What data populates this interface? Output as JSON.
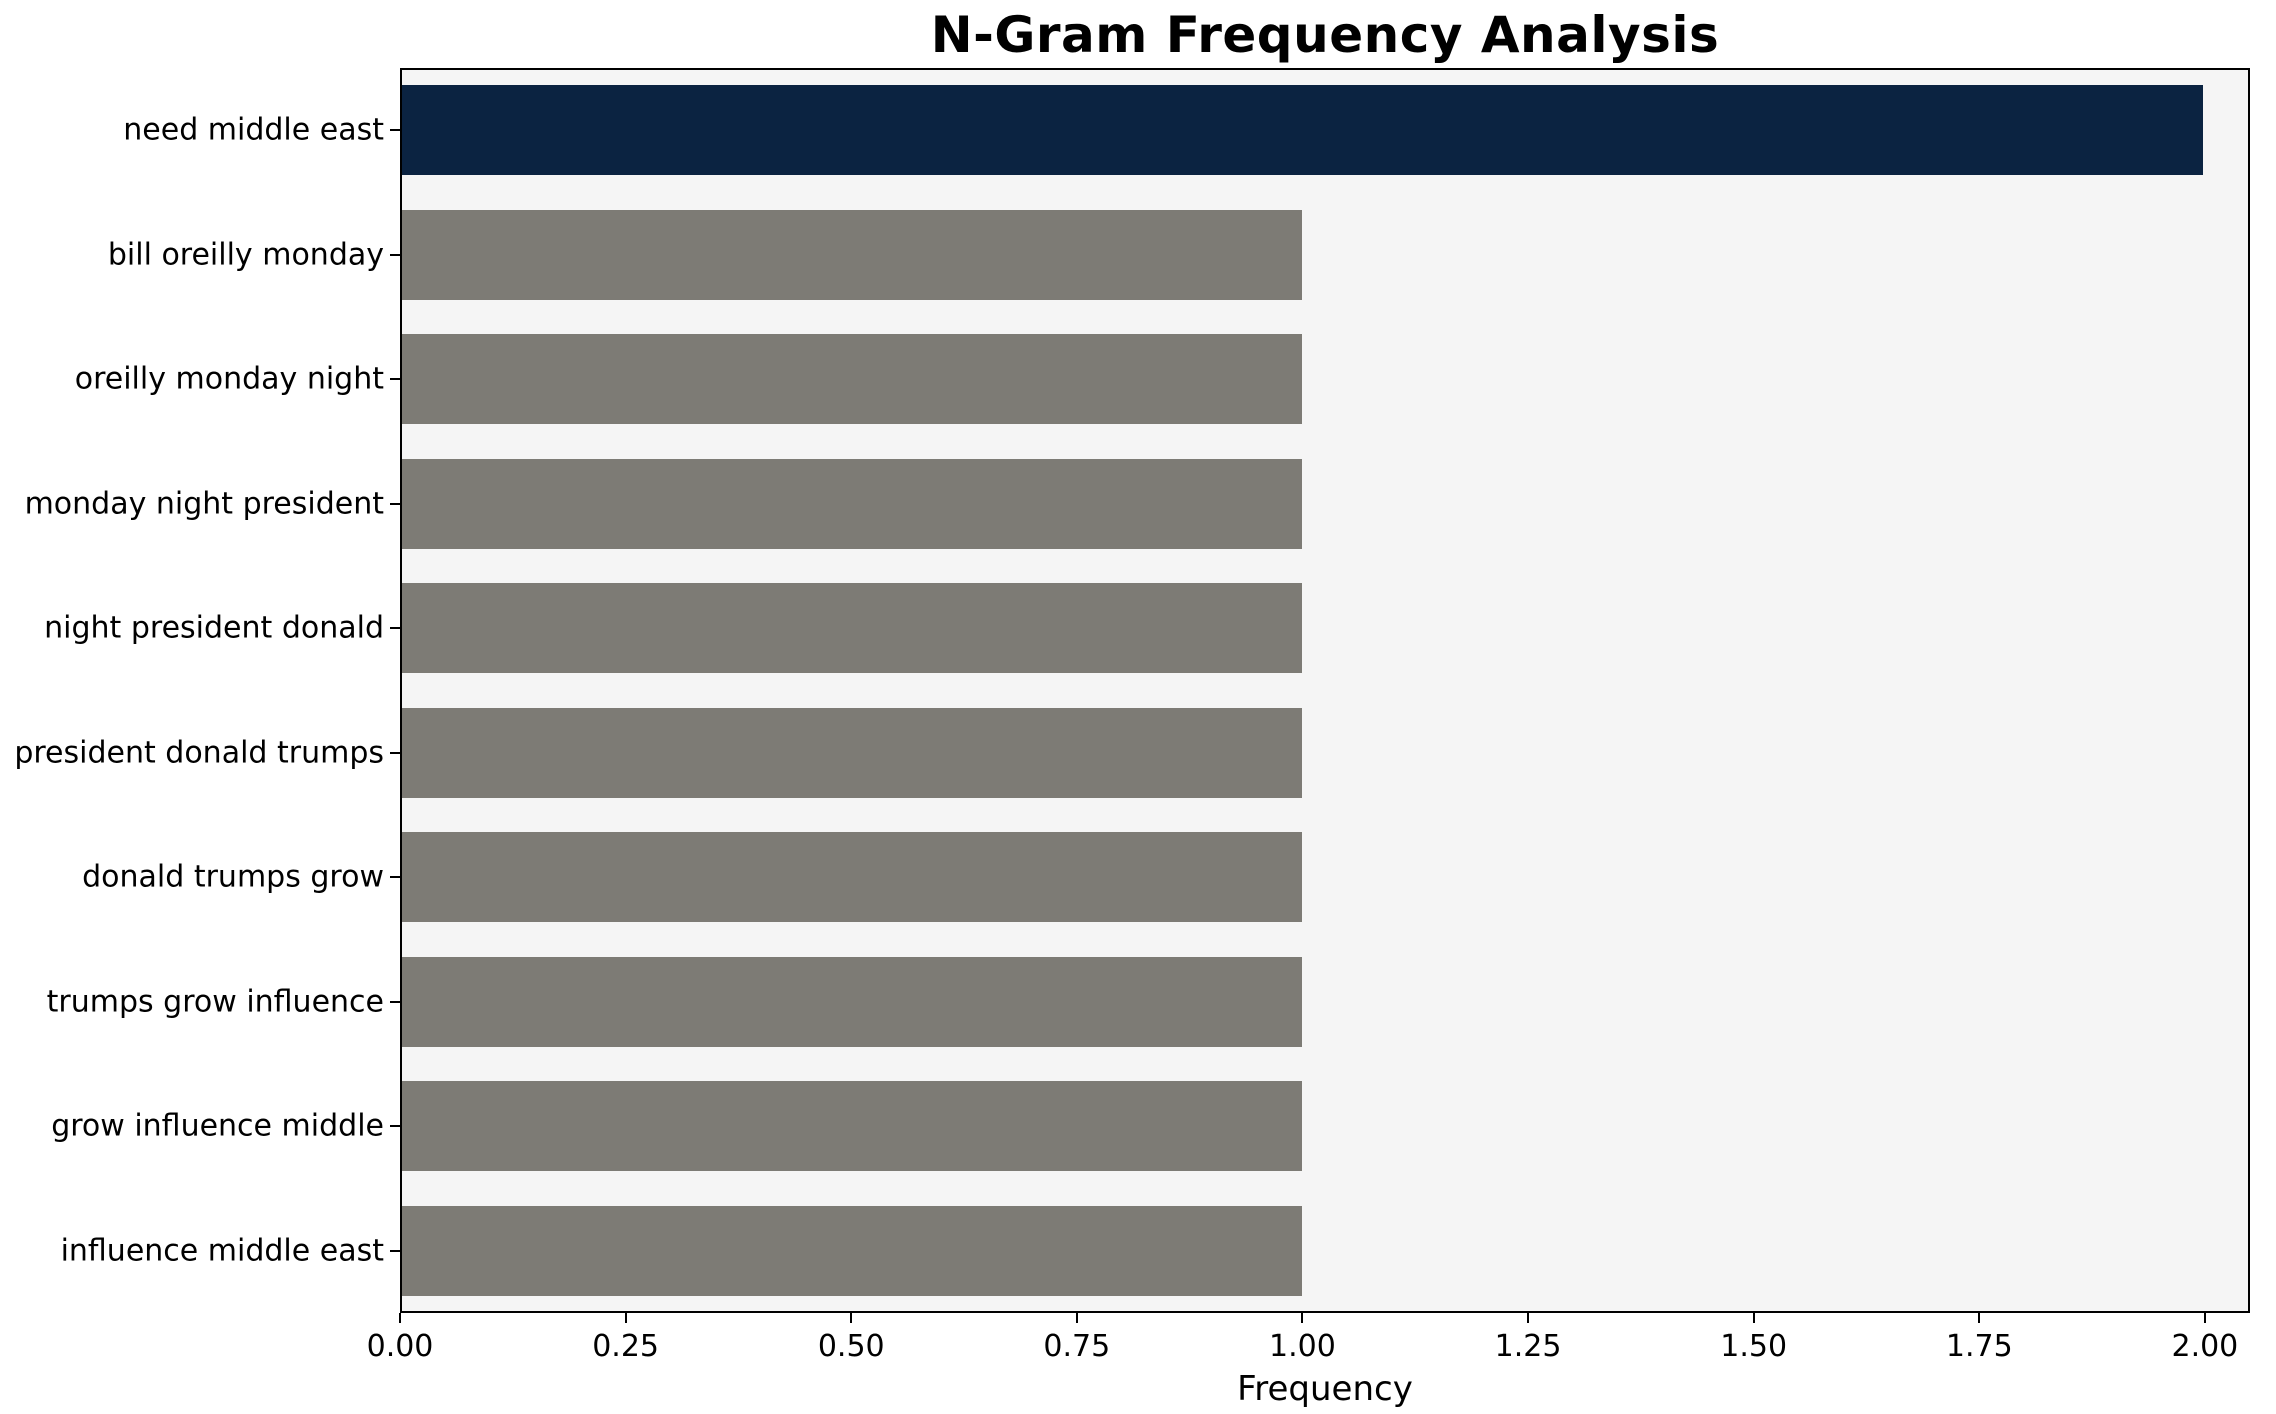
{
  "chart_data": {
    "type": "bar",
    "orientation": "horizontal",
    "title": "N-Gram Frequency Analysis",
    "xlabel": "Frequency",
    "ylabel": "",
    "categories": [
      "need middle east",
      "bill oreilly monday",
      "oreilly monday night",
      "monday night president",
      "night president donald",
      "president donald trumps",
      "donald trumps grow",
      "trumps grow influence",
      "grow influence middle",
      "influence middle east"
    ],
    "values": [
      2,
      1,
      1,
      1,
      1,
      1,
      1,
      1,
      1,
      1
    ],
    "highlight_index": 0,
    "xlim": [
      0,
      2.05
    ],
    "xtick_values": [
      0.0,
      0.25,
      0.5,
      0.75,
      1.0,
      1.25,
      1.5,
      1.75,
      2.0
    ],
    "xtick_labels": [
      "0.00",
      "0.25",
      "0.50",
      "0.75",
      "1.00",
      "1.25",
      "1.50",
      "1.75",
      "2.00"
    ],
    "grid": false,
    "legend": "none",
    "colors": {
      "highlight_bar": "#0b2341",
      "default_bar": "#7d7b75",
      "plot_background": "#f5f5f5",
      "figure_background": "#ffffff",
      "spine": "#000000",
      "text": "#000000"
    }
  }
}
